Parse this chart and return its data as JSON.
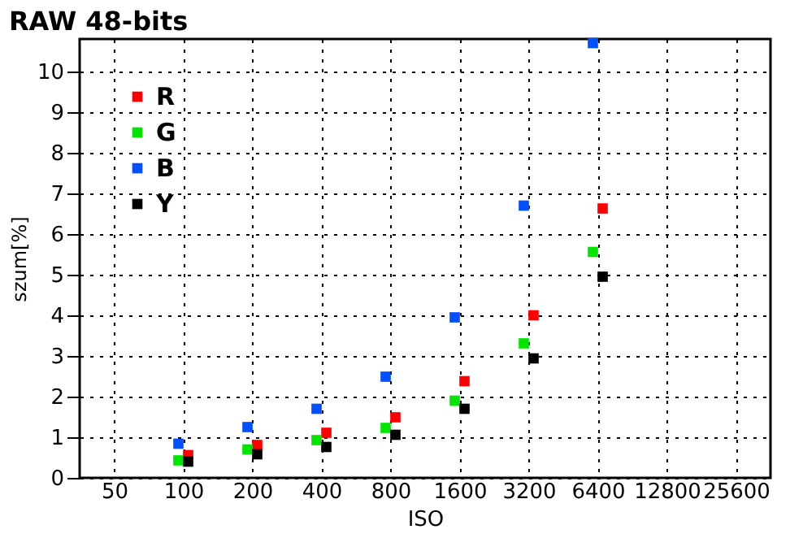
{
  "chart_data": {
    "type": "scatter",
    "title": "RAW 48-bits",
    "xlabel": "ISO",
    "ylabel": "szum[%]",
    "categories": [
      "50",
      "100",
      "200",
      "400",
      "800",
      "1600",
      "3200",
      "6400",
      "12800",
      "25600"
    ],
    "series": [
      {
        "name": "R",
        "color": "#ff0000",
        "values": [
          null,
          0.56,
          0.81,
          1.11,
          1.49,
          2.38,
          4.0,
          6.63,
          null,
          null
        ]
      },
      {
        "name": "G",
        "color": "#00e600",
        "values": [
          null,
          0.43,
          0.7,
          0.93,
          1.23,
          1.9,
          3.31,
          5.56,
          null,
          null
        ]
      },
      {
        "name": "B",
        "color": "#0050ff",
        "values": [
          null,
          0.84,
          1.25,
          1.7,
          2.49,
          3.95,
          6.7,
          10.7,
          null,
          null
        ]
      },
      {
        "name": "Y",
        "color": "#000000",
        "values": [
          null,
          0.4,
          0.58,
          0.76,
          1.06,
          1.7,
          2.94,
          4.95,
          null,
          null
        ]
      }
    ],
    "ylim": [
      0,
      10.8
    ],
    "yticks": [
      0,
      1,
      2,
      3,
      4,
      5,
      6,
      7,
      8,
      9,
      10
    ],
    "grid": true,
    "legend": "top left",
    "marker": "square"
  }
}
